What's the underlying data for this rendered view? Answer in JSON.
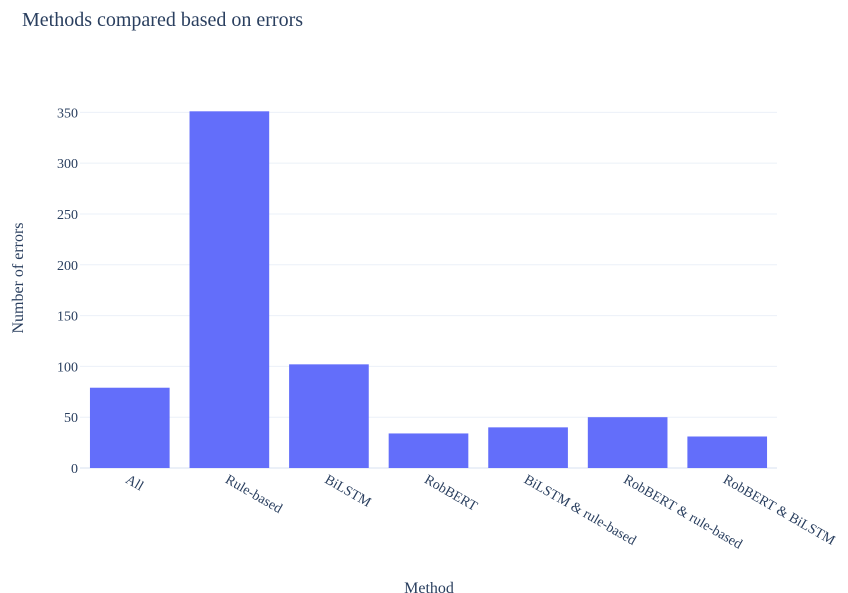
{
  "chart_data": {
    "type": "bar",
    "title": "Methods compared based on errors",
    "xlabel": "Method",
    "ylabel": "Number of errors",
    "categories": [
      "All",
      "Rule-based",
      "BiLSTM",
      "RobBERT",
      "BiLSTM & rule-based",
      "RobBERT & rule-based",
      "RobBERT & BiLSTM"
    ],
    "values": [
      79,
      351,
      102,
      34,
      40,
      50,
      31
    ],
    "ylim": [
      0,
      370
    ],
    "yticks": [
      0,
      50,
      100,
      150,
      200,
      250,
      300,
      350
    ],
    "grid": true,
    "bar_color": "#636efa",
    "grid_color": "#ebf0f8",
    "text_color": "#2a3f5f"
  }
}
